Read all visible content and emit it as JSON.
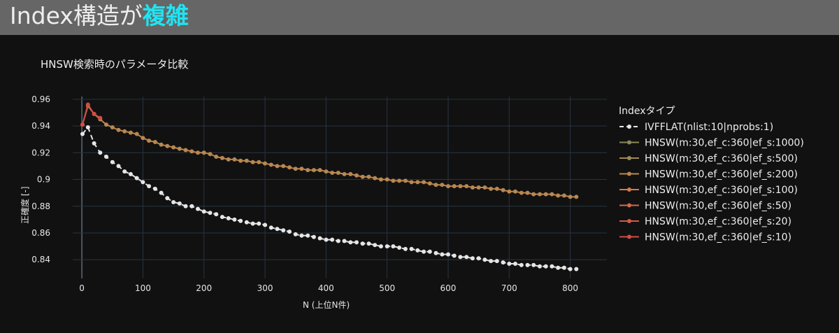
{
  "slide": {
    "title_prefix": "Index構造が",
    "title_accent": "複雑",
    "accent_color": "#21e3f2"
  },
  "chart_data": {
    "type": "line",
    "title": "HNSW検索時のパラメータ比較",
    "xlabel": "N (上位N件)",
    "ylabel": "正確度 [-]",
    "xlim": [
      -15,
      860
    ],
    "ylim": [
      0.826,
      0.962
    ],
    "x_ticks": [
      0,
      100,
      200,
      300,
      400,
      500,
      600,
      700,
      800
    ],
    "y_ticks": [
      0.84,
      0.86,
      0.88,
      0.9,
      0.92,
      0.94,
      0.96
    ],
    "grid": true,
    "legend": {
      "title": "Indexタイプ",
      "placement": "right"
    },
    "series": [
      {
        "name": "IVFFLAT(nlist:10|nprobs:1)",
        "color": "#e6e6e6",
        "dash": "dash",
        "x": [
          1,
          10,
          20,
          30,
          40,
          50,
          60,
          70,
          80,
          90,
          100,
          110,
          120,
          130,
          140,
          150,
          160,
          170,
          180,
          190,
          200,
          210,
          220,
          230,
          240,
          250,
          260,
          270,
          280,
          290,
          300,
          310,
          320,
          330,
          340,
          350,
          360,
          370,
          380,
          390,
          400,
          410,
          420,
          430,
          440,
          450,
          460,
          470,
          480,
          490,
          500,
          510,
          520,
          530,
          540,
          550,
          560,
          570,
          580,
          590,
          600,
          610,
          620,
          630,
          640,
          650,
          660,
          670,
          680,
          690,
          700,
          710,
          720,
          730,
          740,
          750,
          760,
          770,
          780,
          790,
          800,
          810
        ],
        "y": [
          0.934,
          0.939,
          0.927,
          0.92,
          0.917,
          0.913,
          0.91,
          0.906,
          0.904,
          0.901,
          0.898,
          0.895,
          0.893,
          0.89,
          0.886,
          0.883,
          0.882,
          0.88,
          0.88,
          0.878,
          0.876,
          0.875,
          0.874,
          0.872,
          0.871,
          0.87,
          0.869,
          0.868,
          0.867,
          0.867,
          0.866,
          0.864,
          0.863,
          0.862,
          0.861,
          0.859,
          0.858,
          0.858,
          0.857,
          0.856,
          0.855,
          0.855,
          0.854,
          0.854,
          0.853,
          0.853,
          0.852,
          0.852,
          0.851,
          0.85,
          0.85,
          0.85,
          0.849,
          0.848,
          0.848,
          0.847,
          0.846,
          0.846,
          0.845,
          0.844,
          0.844,
          0.843,
          0.842,
          0.842,
          0.841,
          0.841,
          0.84,
          0.839,
          0.839,
          0.838,
          0.837,
          0.837,
          0.836,
          0.836,
          0.836,
          0.835,
          0.835,
          0.835,
          0.834,
          0.834,
          0.833,
          0.833
        ]
      },
      {
        "name": "HNSW(m:30,ef_c:360|ef_s:1000)",
        "color": "#8a8a5c",
        "dash": "solid"
      },
      {
        "name": "HNSW(m:30,ef_c:360|ef_s:500)",
        "color": "#a08a55",
        "dash": "solid"
      },
      {
        "name": "HNSW(m:30,ef_c:360|ef_s:200)",
        "color": "#b9874f",
        "dash": "solid",
        "x": [
          1,
          10,
          20,
          30,
          40,
          50,
          60,
          70,
          80,
          90,
          100,
          110,
          120,
          130,
          140,
          150,
          160,
          170,
          180,
          190,
          200,
          210,
          220,
          230,
          240,
          250,
          260,
          270,
          280,
          290,
          300,
          310,
          320,
          330,
          340,
          350,
          360,
          370,
          380,
          390,
          400,
          410,
          420,
          430,
          440,
          450,
          460,
          470,
          480,
          490,
          500,
          510,
          520,
          530,
          540,
          550,
          560,
          570,
          580,
          590,
          600,
          610,
          620,
          630,
          640,
          650,
          660,
          670,
          680,
          690,
          700,
          710,
          720,
          730,
          740,
          750,
          760,
          770,
          780,
          790,
          800,
          810
        ],
        "y": [
          0.941,
          0.955,
          0.949,
          0.945,
          0.941,
          0.939,
          0.937,
          0.936,
          0.935,
          0.934,
          0.931,
          0.929,
          0.928,
          0.926,
          0.925,
          0.924,
          0.923,
          0.922,
          0.921,
          0.92,
          0.92,
          0.919,
          0.917,
          0.916,
          0.915,
          0.915,
          0.914,
          0.914,
          0.913,
          0.913,
          0.912,
          0.911,
          0.91,
          0.91,
          0.909,
          0.908,
          0.908,
          0.907,
          0.907,
          0.907,
          0.906,
          0.905,
          0.905,
          0.904,
          0.904,
          0.903,
          0.902,
          0.902,
          0.901,
          0.9,
          0.9,
          0.899,
          0.899,
          0.899,
          0.898,
          0.898,
          0.898,
          0.897,
          0.896,
          0.896,
          0.895,
          0.895,
          0.895,
          0.895,
          0.894,
          0.894,
          0.894,
          0.893,
          0.893,
          0.892,
          0.891,
          0.891,
          0.89,
          0.89,
          0.889,
          0.889,
          0.889,
          0.889,
          0.888,
          0.888,
          0.887,
          0.887
        ]
      },
      {
        "name": "HNSW(m:30,ef_c:360|ef_s:100)",
        "color": "#cc7e4d",
        "dash": "solid"
      },
      {
        "name": "HNSW(m:30,ef_c:360|ef_s:50)",
        "color": "#d2694a",
        "dash": "solid"
      },
      {
        "name": "HNSW(m:30,ef_c:360|ef_s:20)",
        "color": "#d45a47",
        "dash": "solid"
      },
      {
        "name": "HNSW(m:30,ef_c:360|ef_s:10)",
        "color": "#d44c44",
        "dash": "solid",
        "x": [
          1,
          10,
          20,
          30
        ],
        "y": [
          0.941,
          0.956,
          0.949,
          0.946
        ]
      }
    ]
  }
}
